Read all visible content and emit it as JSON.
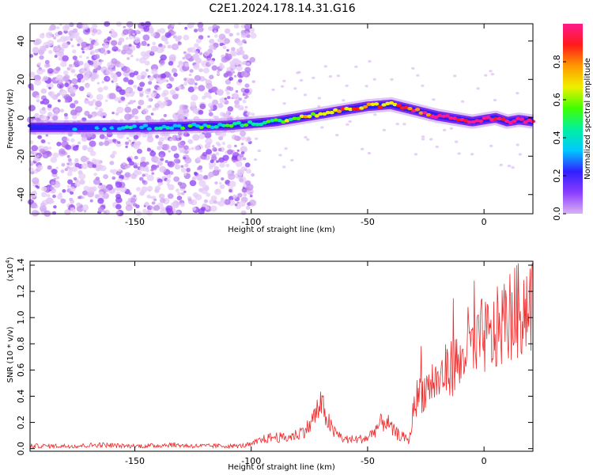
{
  "figure": {
    "title": "C2E1.2024.178.14.31.G16"
  },
  "chart_data": [
    {
      "type": "heatmap",
      "xlabel": "Height of straight line (km)",
      "ylabel": "Frequency (Hz)",
      "xlim": [
        -195,
        21
      ],
      "ylim": [
        -50,
        49
      ],
      "xticks": [
        -150,
        -100,
        -50,
        0
      ],
      "yticks": [
        -40,
        -20,
        0,
        20,
        40
      ],
      "colorbar": {
        "label": "Normalized spectral amplitude",
        "range": [
          0,
          1
        ],
        "ticks": [
          0.0,
          0.2,
          0.4,
          0.6,
          0.8
        ],
        "colormap": [
          "#d9b3f2",
          "#8b3dff",
          "#3020ff",
          "#00c8ff",
          "#00f0a0",
          "#40ff00",
          "#f0f000",
          "#ff9900",
          "#ff1a1a",
          "#ff1a8c"
        ]
      },
      "ridge": {
        "x": [
          -195,
          -150,
          -110,
          -100,
          -90,
          -80,
          -70,
          -60,
          -50,
          -40,
          -30,
          -20,
          -10,
          -5,
          0,
          5,
          10,
          15,
          21
        ],
        "freq": [
          -5,
          -5,
          -4,
          -3,
          -2,
          0,
          2,
          4,
          6,
          7,
          4,
          1,
          -1,
          -2,
          -1,
          0,
          -2,
          -1,
          -2
        ]
      }
    },
    {
      "type": "line",
      "xlabel": "Height of straight line (km)",
      "ylabel": "SNR (10 * v/v)",
      "scale_note": "(x10",
      "scale_exp": "4",
      "scale_close": ")",
      "xlim": [
        -195,
        21
      ],
      "ylim": [
        -0.02,
        1.43
      ],
      "xticks": [
        -150,
        -100,
        -50,
        0
      ],
      "yticks": [
        0.0,
        0.2,
        0.4,
        0.6,
        0.8,
        1.0,
        1.2,
        1.4
      ],
      "color": "#ee2a2a",
      "series": [
        {
          "x": [
            -195,
            -185,
            -175,
            -165,
            -155,
            -145,
            -135,
            -125,
            -115,
            -105,
            -100,
            -95,
            -90,
            -85,
            -80,
            -75,
            -72,
            -70,
            -68,
            -65,
            -62,
            -60,
            -55,
            -50,
            -45,
            -42,
            -40,
            -37,
            -34,
            -32,
            -30,
            -28,
            -25,
            -22,
            -20,
            -17,
            -15,
            -12,
            -10,
            -8,
            -6,
            -4,
            -2,
            0,
            3,
            6,
            9,
            12,
            15,
            18,
            21
          ],
          "values": [
            0.02,
            0.02,
            0.02,
            0.03,
            0.02,
            0.02,
            0.03,
            0.02,
            0.02,
            0.02,
            0.03,
            0.07,
            0.09,
            0.08,
            0.11,
            0.17,
            0.28,
            0.33,
            0.26,
            0.13,
            0.1,
            0.07,
            0.07,
            0.08,
            0.18,
            0.22,
            0.15,
            0.11,
            0.08,
            0.06,
            0.35,
            0.42,
            0.45,
            0.52,
            0.5,
            0.58,
            0.6,
            0.66,
            0.62,
            0.78,
            0.82,
            0.7,
            0.82,
            0.87,
            0.82,
            0.92,
            0.98,
            1.02,
            1.05,
            1.1,
            1.12
          ]
        }
      ]
    }
  ]
}
